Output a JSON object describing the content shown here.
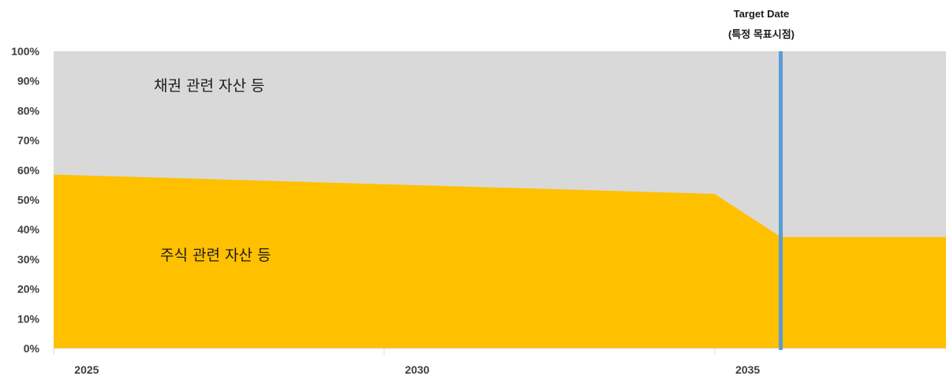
{
  "chart_data": {
    "type": "area",
    "title": "",
    "xlabel": "",
    "ylabel": "",
    "x_ticks": [
      "2025",
      "2030",
      "2035"
    ],
    "y_ticks": [
      "0%",
      "10%",
      "20%",
      "30%",
      "40%",
      "50%",
      "60%",
      "70%",
      "80%",
      "90%",
      "100%"
    ],
    "xlim": [
      2024.5,
      2038
    ],
    "ylim": [
      0,
      100
    ],
    "series": [
      {
        "name": "주식 관련 자산  등",
        "color": "#FFC000",
        "x": [
          2024.5,
          2034.5,
          2035.5,
          2038
        ],
        "values": [
          58.5,
          52,
          37.5,
          37.5
        ]
      },
      {
        "name": "채권 관련 자산  등",
        "color": "#D9D9D9",
        "x": [
          2024.5,
          2034.5,
          2035.5,
          2038
        ],
        "values": [
          41.5,
          48,
          62.5,
          62.5
        ]
      }
    ],
    "annotations": {
      "target_line_x": 2035.5,
      "target_line_color": "#5B9BD5",
      "target_label_line1": "Target Date",
      "target_label_line2": "(특정 목표시점)"
    },
    "stacked": true,
    "grid": false
  }
}
